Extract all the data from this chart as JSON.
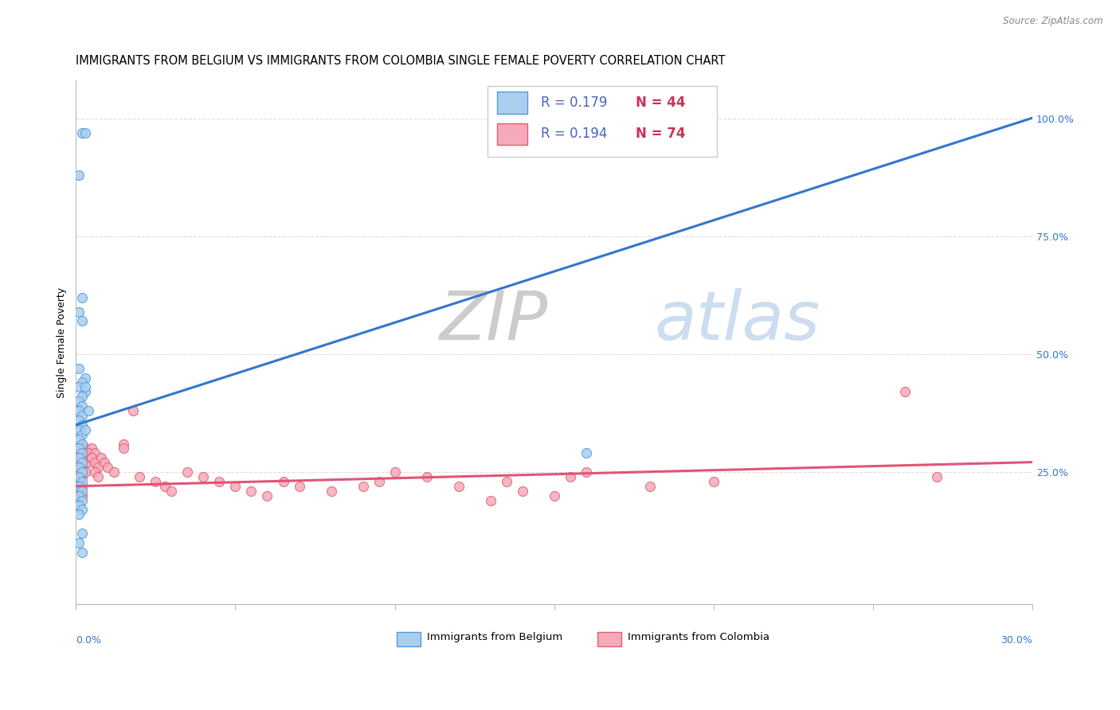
{
  "title": "IMMIGRANTS FROM BELGIUM VS IMMIGRANTS FROM COLOMBIA SINGLE FEMALE POVERTY CORRELATION CHART",
  "source": "Source: ZipAtlas.com",
  "ylabel": "Single Female Poverty",
  "xlim": [
    0.0,
    0.3
  ],
  "ylim": [
    -0.03,
    1.08
  ],
  "right_ytick_vals": [
    0.25,
    0.5,
    0.75,
    1.0
  ],
  "right_ytick_labels": [
    "25.0%",
    "50.0%",
    "75.0%",
    "100.0%"
  ],
  "xtick_vals": [
    0.0,
    0.05,
    0.1,
    0.15,
    0.2,
    0.25,
    0.3
  ],
  "belgium_R": 0.179,
  "belgium_N": 44,
  "colombia_R": 0.194,
  "colombia_N": 74,
  "belgium_scatter_color": "#aacfee",
  "belgium_scatter_edge": "#5599dd",
  "colombia_scatter_color": "#f5aabb",
  "colombia_scatter_edge": "#e06070",
  "belgium_line_color": "#3377cc",
  "colombia_line_color": "#e05575",
  "dashed_line_color": "#99bbdd",
  "watermark_color": "#ccddf0",
  "grid_color": "#dddddd",
  "legend_R_color": "#4466bb",
  "legend_N_color": "#cc3355",
  "background_color": "#ffffff",
  "title_fontsize": 10.5,
  "ylabel_fontsize": 9,
  "tick_fontsize": 9,
  "legend_fontsize": 12,
  "belgium_x": [
    0.002,
    0.003,
    0.001,
    0.002,
    0.001,
    0.002,
    0.001,
    0.003,
    0.002,
    0.001,
    0.003,
    0.002,
    0.001,
    0.002,
    0.001,
    0.002,
    0.001,
    0.002,
    0.001,
    0.003,
    0.002,
    0.001,
    0.002,
    0.001,
    0.002,
    0.001,
    0.002,
    0.001,
    0.002,
    0.001,
    0.002,
    0.001,
    0.002,
    0.001,
    0.002,
    0.001,
    0.002,
    0.001,
    0.002,
    0.001,
    0.002,
    0.004,
    0.003,
    0.16
  ],
  "belgium_y": [
    0.97,
    0.97,
    0.88,
    0.62,
    0.59,
    0.57,
    0.47,
    0.45,
    0.44,
    0.43,
    0.42,
    0.41,
    0.4,
    0.39,
    0.38,
    0.37,
    0.36,
    0.35,
    0.34,
    0.43,
    0.33,
    0.32,
    0.31,
    0.3,
    0.29,
    0.28,
    0.27,
    0.26,
    0.25,
    0.24,
    0.23,
    0.22,
    0.21,
    0.2,
    0.19,
    0.18,
    0.17,
    0.16,
    0.12,
    0.1,
    0.08,
    0.38,
    0.34,
    0.29
  ],
  "colombia_x": [
    0.001,
    0.002,
    0.001,
    0.002,
    0.001,
    0.002,
    0.001,
    0.002,
    0.001,
    0.002,
    0.001,
    0.002,
    0.001,
    0.002,
    0.001,
    0.002,
    0.001,
    0.002,
    0.001,
    0.002,
    0.003,
    0.002,
    0.003,
    0.002,
    0.003,
    0.002,
    0.003,
    0.004,
    0.003,
    0.004,
    0.005,
    0.004,
    0.005,
    0.006,
    0.005,
    0.006,
    0.007,
    0.006,
    0.007,
    0.008,
    0.009,
    0.01,
    0.012,
    0.015,
    0.015,
    0.018,
    0.02,
    0.025,
    0.028,
    0.03,
    0.035,
    0.04,
    0.045,
    0.05,
    0.055,
    0.06,
    0.065,
    0.07,
    0.08,
    0.09,
    0.095,
    0.1,
    0.11,
    0.12,
    0.13,
    0.135,
    0.14,
    0.15,
    0.155,
    0.16,
    0.18,
    0.2,
    0.26,
    0.27
  ],
  "colombia_y": [
    0.26,
    0.25,
    0.24,
    0.3,
    0.28,
    0.27,
    0.23,
    0.22,
    0.21,
    0.2,
    0.29,
    0.28,
    0.27,
    0.26,
    0.25,
    0.24,
    0.23,
    0.22,
    0.21,
    0.2,
    0.29,
    0.28,
    0.27,
    0.26,
    0.25,
    0.31,
    0.3,
    0.29,
    0.28,
    0.27,
    0.3,
    0.29,
    0.28,
    0.29,
    0.28,
    0.27,
    0.26,
    0.25,
    0.24,
    0.28,
    0.27,
    0.26,
    0.25,
    0.31,
    0.3,
    0.38,
    0.24,
    0.23,
    0.22,
    0.21,
    0.25,
    0.24,
    0.23,
    0.22,
    0.21,
    0.2,
    0.23,
    0.22,
    0.21,
    0.22,
    0.23,
    0.25,
    0.24,
    0.22,
    0.19,
    0.23,
    0.21,
    0.2,
    0.24,
    0.25,
    0.22,
    0.23,
    0.42,
    0.24
  ]
}
